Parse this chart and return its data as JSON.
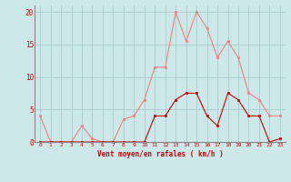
{
  "x": [
    0,
    1,
    2,
    3,
    4,
    5,
    6,
    7,
    8,
    9,
    10,
    11,
    12,
    13,
    14,
    15,
    16,
    17,
    18,
    19,
    20,
    21,
    22,
    23
  ],
  "rafales": [
    4,
    0,
    0,
    0,
    2.5,
    0.5,
    0,
    0,
    3.5,
    4,
    6.5,
    11.5,
    11.5,
    20,
    15.5,
    20,
    17.5,
    13,
    15.5,
    13,
    7.5,
    6.5,
    4,
    4
  ],
  "moyen": [
    0,
    0,
    0,
    0,
    0,
    0,
    0,
    0,
    0,
    0,
    0,
    4,
    4,
    6.5,
    7.5,
    7.5,
    4,
    2.5,
    7.5,
    6.5,
    4,
    4,
    0,
    0.5
  ],
  "bg_color": "#cce8e8",
  "grid_color": "#aacccc",
  "line_color_rafales": "#f08080",
  "line_color_moyen": "#cc0000",
  "ylabel_ticks": [
    0,
    5,
    10,
    15,
    20
  ],
  "xlabel": "Vent moyen/en rafales ( km/h )",
  "ylim": [
    0,
    21
  ],
  "xlim": [
    -0.5,
    23.5
  ],
  "tick_color": "#cc0000",
  "xlabel_color": "#cc0000"
}
